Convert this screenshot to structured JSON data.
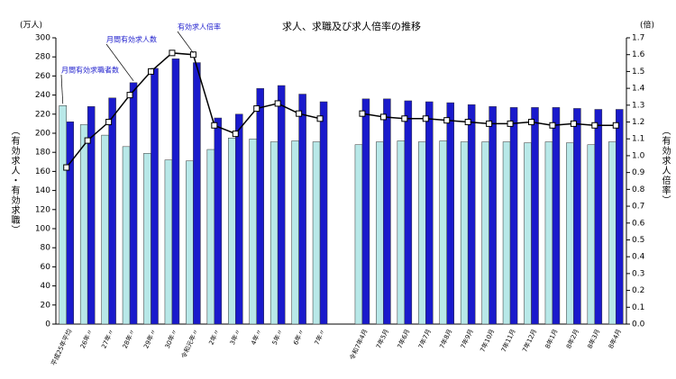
{
  "chart_data": {
    "type": "bar",
    "title": "求人、求職及び求人倍率の推移",
    "y_unit": "(万人)",
    "y2_unit": "(倍)",
    "y_label": "（有効求人・有効求職）",
    "y2_label": "（有効求人倍率）",
    "categories": [
      "平成25年平均",
      "26年〃",
      "27年〃",
      "28年〃",
      "29年〃",
      "30年〃",
      "令和元年〃",
      "2年〃",
      "3年〃",
      "4年〃",
      "5年〃",
      "6年〃",
      "7年〃",
      null,
      "令和7年4月",
      "7年5月",
      "7年6月",
      "7年7月",
      "7年8月",
      "7年9月",
      "7年10月",
      "7年11月",
      "7年12月",
      "8年1月",
      "8年2月",
      "8年3月",
      "8年4月"
    ],
    "series": [
      {
        "name": "月間有効求職者数",
        "color": "#b8e8e8",
        "values": [
          229,
          209,
          198,
          186,
          179,
          172,
          171,
          183,
          195,
          194,
          191,
          192,
          191,
          null,
          188,
          191,
          192,
          191,
          192,
          191,
          191,
          191,
          190,
          191,
          190,
          188,
          191
        ]
      },
      {
        "name": "月間有効求人数",
        "color": "#1a1acc",
        "values": [
          212,
          228,
          237,
          253,
          268,
          278,
          274,
          216,
          220,
          247,
          250,
          241,
          233,
          null,
          236,
          236,
          234,
          233,
          232,
          230,
          228,
          227,
          227,
          227,
          226,
          225,
          225
        ]
      },
      {
        "name": "有効求人倍率",
        "color": "#000000",
        "axis": "y2",
        "type": "line",
        "values": [
          0.93,
          1.09,
          1.2,
          1.36,
          1.5,
          1.61,
          1.6,
          1.18,
          1.13,
          1.28,
          1.31,
          1.25,
          1.22,
          null,
          1.25,
          1.23,
          1.22,
          1.22,
          1.21,
          1.2,
          1.19,
          1.19,
          1.2,
          1.18,
          1.19,
          1.18,
          1.18
        ]
      }
    ],
    "ylim": [
      0,
      300
    ],
    "yticks": [
      0,
      20,
      40,
      60,
      80,
      100,
      120,
      140,
      160,
      180,
      200,
      220,
      240,
      260,
      280,
      300
    ],
    "y2lim": [
      0,
      1.7
    ],
    "y2ticks": [
      {
        "value": 0,
        "label": "0.0"
      },
      0.1,
      0.2,
      0.3,
      0.4,
      0.5,
      0.6,
      0.7,
      0.8,
      0.9,
      {
        "value": 1,
        "label": "1.0"
      },
      1.1,
      1.2,
      1.3,
      1.4,
      1.5,
      1.6,
      1.7
    ],
    "grid": false
  }
}
